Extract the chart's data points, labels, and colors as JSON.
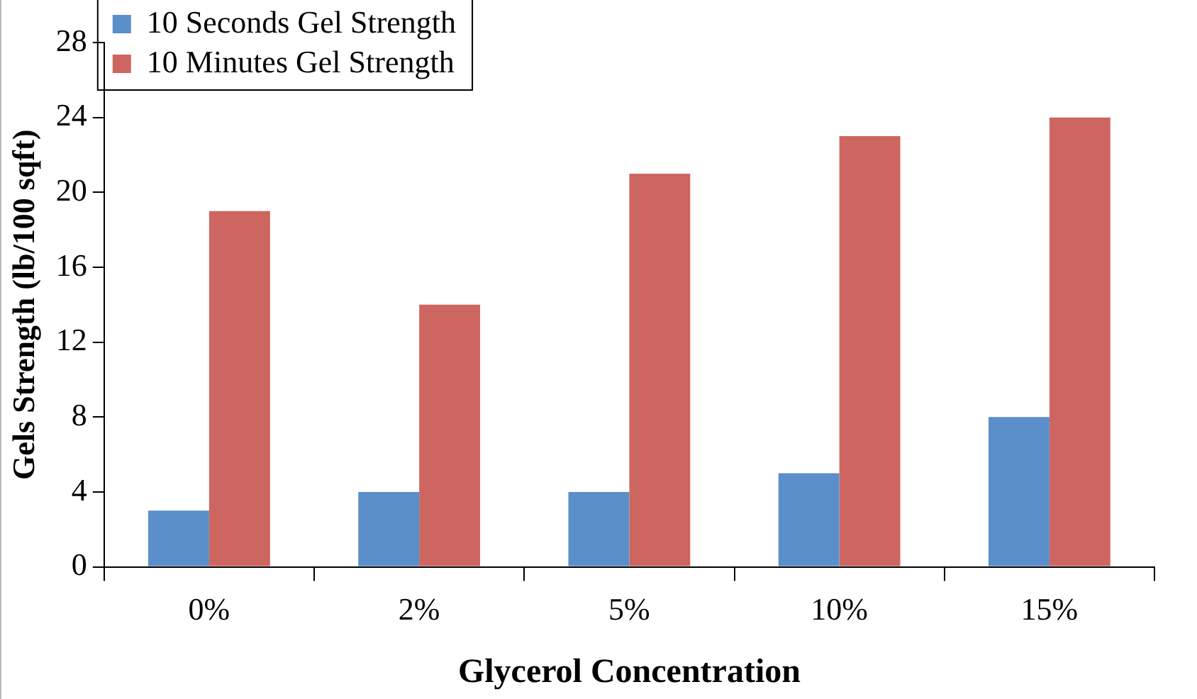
{
  "chart_data": {
    "type": "bar",
    "xlabel": "Glycerol Concentration",
    "ylabel": "Gels Strength (lb/100 sqft)",
    "categories": [
      "0%",
      "2%",
      "5%",
      "10%",
      "15%"
    ],
    "series": [
      {
        "name": "10 Seconds Gel Strength",
        "color": "#5b8fc9",
        "values": [
          3,
          4,
          4,
          5,
          8
        ]
      },
      {
        "name": "10 Minutes Gel Strength",
        "color": "#cd6660",
        "values": [
          19,
          14,
          21,
          23,
          24
        ]
      }
    ],
    "ylim": [
      0,
      28
    ],
    "yticks": [
      0,
      4,
      8,
      12,
      16,
      20,
      24,
      28
    ],
    "grid": false,
    "legend": "top left"
  }
}
